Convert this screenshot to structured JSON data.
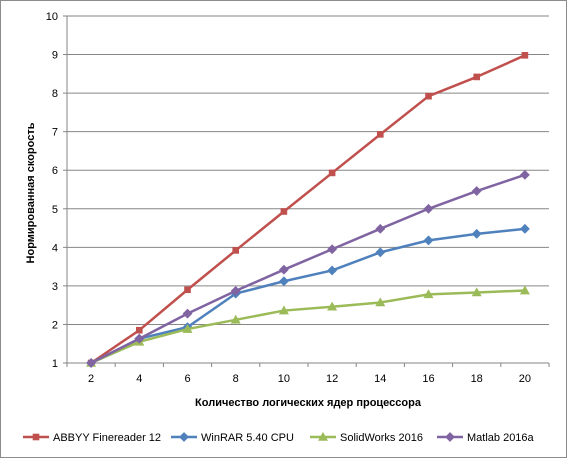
{
  "chart_data": {
    "type": "line",
    "title": "",
    "xlabel": "Количество  логических  ядер  процессора",
    "ylabel": "Нормированная  скорость",
    "x": [
      2,
      4,
      6,
      8,
      10,
      12,
      14,
      16,
      18,
      20
    ],
    "xlim": [
      2,
      20
    ],
    "ylim": [
      1,
      10
    ],
    "yticks": [
      1,
      2,
      3,
      4,
      5,
      6,
      7,
      8,
      9,
      10
    ],
    "grid": {
      "horizontal": true,
      "vertical": false
    },
    "legend_position": "bottom",
    "series": [
      {
        "name": "ABBYY Finereader 12",
        "color": "#c0504d",
        "marker": "square",
        "values": [
          1.0,
          1.85,
          2.9,
          3.92,
          4.93,
          5.93,
          6.93,
          7.92,
          8.42,
          8.98
        ]
      },
      {
        "name": "WinRAR 5.40 CPU",
        "color": "#4f81bd",
        "marker": "diamond",
        "values": [
          1.0,
          1.63,
          1.93,
          2.8,
          3.12,
          3.4,
          3.87,
          4.18,
          4.35,
          4.48
        ]
      },
      {
        "name": "SolidWorks 2016",
        "color": "#9bbb59",
        "marker": "triangle",
        "values": [
          1.0,
          1.55,
          1.88,
          2.12,
          2.36,
          2.46,
          2.57,
          2.78,
          2.83,
          2.88
        ]
      },
      {
        "name": "Matlab 2016a",
        "color": "#8064a2",
        "marker": "diamond",
        "values": [
          1.0,
          1.63,
          2.28,
          2.87,
          3.42,
          3.95,
          4.48,
          5.0,
          5.46,
          5.88
        ]
      }
    ]
  }
}
